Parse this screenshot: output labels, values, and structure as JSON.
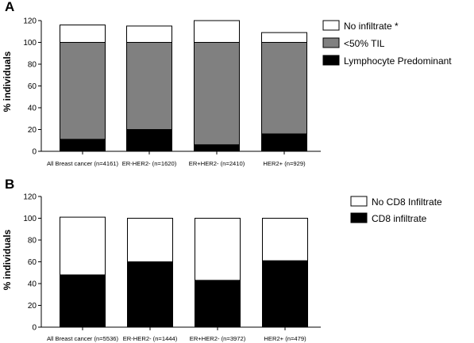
{
  "chart_data": [
    {
      "panel": "A",
      "type": "bar",
      "stacked": true,
      "categories": [
        "All Breast cancer (n=4161)",
        "ER-HER2- (n=1620)",
        "ER+HER2- (n=2410)",
        "HER2+ (n=929)"
      ],
      "series": [
        {
          "name": "Lymphocyte Predominant",
          "values": [
            11,
            20,
            6,
            16
          ],
          "color": "#000000"
        },
        {
          "name": "<50% TIL",
          "values": [
            89,
            80,
            94,
            84
          ],
          "color": "#808080"
        },
        {
          "name": "No infiltrate *",
          "values": [
            16,
            15,
            20,
            9
          ],
          "color": "#ffffff"
        }
      ],
      "legend_order": [
        "No infiltrate *",
        "<50% TIL",
        "Lymphocyte Predominant"
      ],
      "legend_position": "right",
      "ylabel": "% individuals",
      "ylim": [
        0,
        120
      ],
      "yticks": [
        0,
        20,
        40,
        60,
        80,
        100,
        120
      ],
      "grid": false
    },
    {
      "panel": "B",
      "type": "bar",
      "stacked": true,
      "categories": [
        "All Breast cancer (n=5536)",
        "ER-HER2- (n=1444)",
        "ER+HER2- (n=3972)",
        "HER2+ (n=479)"
      ],
      "series": [
        {
          "name": "CD8 infiltrate",
          "values": [
            48,
            60,
            43,
            61
          ],
          "color": "#000000"
        },
        {
          "name": "No CD8 Infiltrate",
          "values": [
            53,
            40,
            57,
            39
          ],
          "color": "#ffffff"
        }
      ],
      "legend_order": [
        "No CD8 Infiltrate",
        "CD8 infiltrate"
      ],
      "legend_position": "right",
      "ylabel": "% individuals",
      "ylim": [
        0,
        120
      ],
      "yticks": [
        0,
        20,
        40,
        60,
        80,
        100,
        120
      ],
      "grid": false
    }
  ]
}
